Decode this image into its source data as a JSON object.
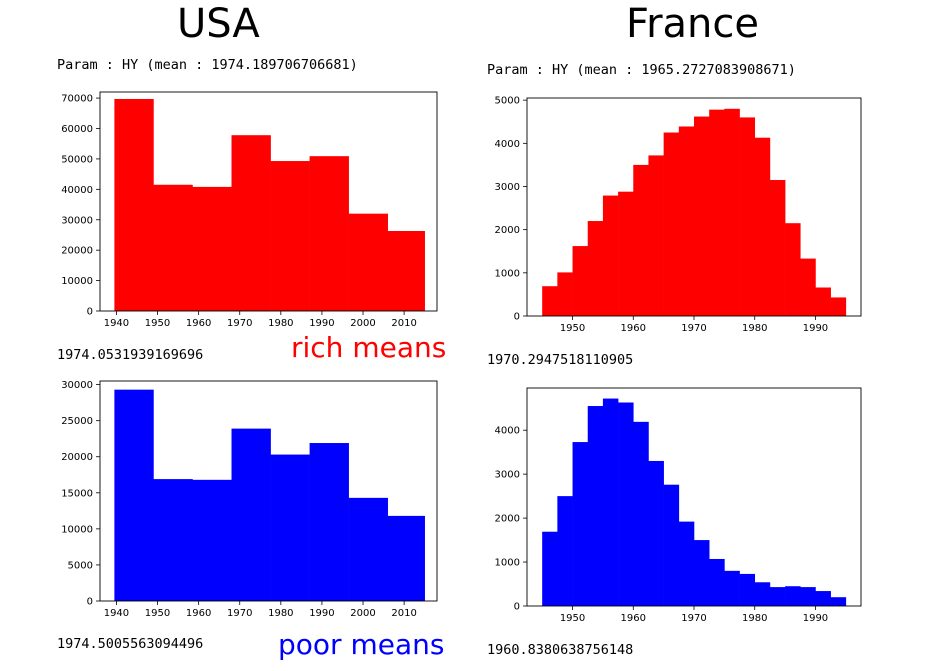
{
  "headings": {
    "left": "USA",
    "right": "France"
  },
  "texts": {
    "usa_param": "Param : HY (mean : 1974.189706706681)",
    "fr_param": "Param : HY (mean : 1965.2727083908671)",
    "usa_rich_mean": "1974.0531939169696",
    "fr_rich_mean": "1970.2947518110905",
    "usa_poor_mean": "1974.5005563094496",
    "fr_poor_mean": "1960.8380638756148",
    "rich_label": "rich means",
    "poor_label": "poor means"
  },
  "colors": {
    "rich": "#ff0000",
    "poor": "#0000ff",
    "rich_label": "#ff0000",
    "poor_label": "#0000ff"
  },
  "chart_data": [
    {
      "type": "bar",
      "panel": "USA rich",
      "color": "#ff0000",
      "xlim": [
        1936,
        2018
      ],
      "ylim": [
        0,
        72000
      ],
      "xticks": [
        1940,
        1950,
        1960,
        1970,
        1980,
        1990,
        2000,
        2010
      ],
      "yticks": [
        0,
        10000,
        20000,
        30000,
        40000,
        50000,
        60000,
        70000
      ],
      "bins": [
        {
          "x0": 1939.5,
          "x1": 1949,
          "value": 69700
        },
        {
          "x0": 1949,
          "x1": 1958.5,
          "value": 41500
        },
        {
          "x0": 1958.5,
          "x1": 1968,
          "value": 40800
        },
        {
          "x0": 1968,
          "x1": 1977.5,
          "value": 57800
        },
        {
          "x0": 1977.5,
          "x1": 1987,
          "value": 49300
        },
        {
          "x0": 1987,
          "x1": 1996.5,
          "value": 50900
        },
        {
          "x0": 1996.5,
          "x1": 2006,
          "value": 32000
        },
        {
          "x0": 2006,
          "x1": 2015,
          "value": 26300
        }
      ]
    },
    {
      "type": "bar",
      "panel": "France rich",
      "color": "#ff0000",
      "xlim": [
        1942.5,
        1997.5
      ],
      "ylim": [
        0,
        5050
      ],
      "xticks": [
        1950,
        1960,
        1970,
        1980,
        1990
      ],
      "yticks": [
        0,
        1000,
        2000,
        3000,
        4000,
        5000
      ],
      "bins": [
        {
          "x0": 1945,
          "x1": 1947.5,
          "value": 690
        },
        {
          "x0": 1947.5,
          "x1": 1950,
          "value": 1010
        },
        {
          "x0": 1950,
          "x1": 1952.5,
          "value": 1620
        },
        {
          "x0": 1952.5,
          "x1": 1955,
          "value": 2200
        },
        {
          "x0": 1955,
          "x1": 1957.5,
          "value": 2790
        },
        {
          "x0": 1957.5,
          "x1": 1960,
          "value": 2880
        },
        {
          "x0": 1960,
          "x1": 1962.5,
          "value": 3500
        },
        {
          "x0": 1962.5,
          "x1": 1965,
          "value": 3720
        },
        {
          "x0": 1965,
          "x1": 1967.5,
          "value": 4250
        },
        {
          "x0": 1967.5,
          "x1": 1970,
          "value": 4390
        },
        {
          "x0": 1970,
          "x1": 1972.5,
          "value": 4620
        },
        {
          "x0": 1972.5,
          "x1": 1975,
          "value": 4780
        },
        {
          "x0": 1975,
          "x1": 1977.5,
          "value": 4800
        },
        {
          "x0": 1977.5,
          "x1": 1980,
          "value": 4600
        },
        {
          "x0": 1980,
          "x1": 1982.5,
          "value": 4130
        },
        {
          "x0": 1982.5,
          "x1": 1985,
          "value": 3150
        },
        {
          "x0": 1985,
          "x1": 1987.5,
          "value": 2150
        },
        {
          "x0": 1987.5,
          "x1": 1990,
          "value": 1330
        },
        {
          "x0": 1990,
          "x1": 1992.5,
          "value": 660
        },
        {
          "x0": 1992.5,
          "x1": 1995,
          "value": 430
        }
      ]
    },
    {
      "type": "bar",
      "panel": "USA poor",
      "color": "#0000ff",
      "xlim": [
        1936,
        2018
      ],
      "ylim": [
        0,
        30500
      ],
      "xticks": [
        1940,
        1950,
        1960,
        1970,
        1980,
        1990,
        2000,
        2010
      ],
      "yticks": [
        0,
        5000,
        10000,
        15000,
        20000,
        25000,
        30000
      ],
      "bins": [
        {
          "x0": 1939.5,
          "x1": 1949,
          "value": 29300
        },
        {
          "x0": 1949,
          "x1": 1958.5,
          "value": 16900
        },
        {
          "x0": 1958.5,
          "x1": 1968,
          "value": 16800
        },
        {
          "x0": 1968,
          "x1": 1977.5,
          "value": 23900
        },
        {
          "x0": 1977.5,
          "x1": 1987,
          "value": 20300
        },
        {
          "x0": 1987,
          "x1": 1996.5,
          "value": 21900
        },
        {
          "x0": 1996.5,
          "x1": 2006,
          "value": 14300
        },
        {
          "x0": 2006,
          "x1": 2015,
          "value": 11800
        }
      ]
    },
    {
      "type": "bar",
      "panel": "France poor",
      "color": "#0000ff",
      "xlim": [
        1942.5,
        1997.5
      ],
      "ylim": [
        0,
        4960
      ],
      "xticks": [
        1950,
        1960,
        1970,
        1980,
        1990
      ],
      "yticks": [
        0,
        1000,
        2000,
        3000,
        4000
      ],
      "bins": [
        {
          "x0": 1945,
          "x1": 1947.5,
          "value": 1690
        },
        {
          "x0": 1947.5,
          "x1": 1950,
          "value": 2500
        },
        {
          "x0": 1950,
          "x1": 1952.5,
          "value": 3730
        },
        {
          "x0": 1952.5,
          "x1": 1955,
          "value": 4550
        },
        {
          "x0": 1955,
          "x1": 1957.5,
          "value": 4720
        },
        {
          "x0": 1957.5,
          "x1": 1960,
          "value": 4630
        },
        {
          "x0": 1960,
          "x1": 1962.5,
          "value": 4190
        },
        {
          "x0": 1962.5,
          "x1": 1965,
          "value": 3300
        },
        {
          "x0": 1965,
          "x1": 1967.5,
          "value": 2760
        },
        {
          "x0": 1967.5,
          "x1": 1970,
          "value": 1920
        },
        {
          "x0": 1970,
          "x1": 1972.5,
          "value": 1500
        },
        {
          "x0": 1972.5,
          "x1": 1975,
          "value": 1070
        },
        {
          "x0": 1975,
          "x1": 1977.5,
          "value": 800
        },
        {
          "x0": 1977.5,
          "x1": 1980,
          "value": 730
        },
        {
          "x0": 1980,
          "x1": 1982.5,
          "value": 540
        },
        {
          "x0": 1982.5,
          "x1": 1985,
          "value": 430
        },
        {
          "x0": 1985,
          "x1": 1987.5,
          "value": 450
        },
        {
          "x0": 1987.5,
          "x1": 1990,
          "value": 430
        },
        {
          "x0": 1990,
          "x1": 1992.5,
          "value": 340
        },
        {
          "x0": 1992.5,
          "x1": 1995,
          "value": 200
        }
      ]
    }
  ]
}
